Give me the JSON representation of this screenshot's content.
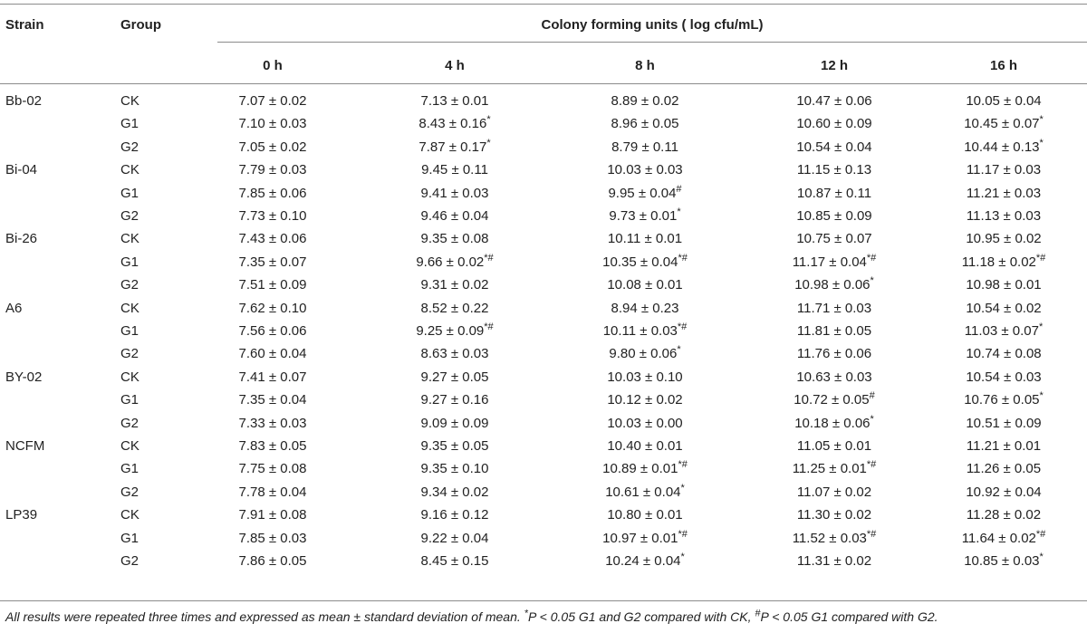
{
  "headers": {
    "strain": "Strain",
    "group": "Group",
    "span": "Colony forming units ( log cfu/mL)",
    "times": [
      "0 h",
      "4 h",
      "8 h",
      "12 h",
      "16 h"
    ]
  },
  "rows": [
    {
      "strain": "Bb-02",
      "group": "CK",
      "cells": [
        {
          "v": "7.07 ± 0.02",
          "m": ""
        },
        {
          "v": "7.13 ± 0.01",
          "m": ""
        },
        {
          "v": "8.89 ± 0.02",
          "m": ""
        },
        {
          "v": "10.47 ± 0.06",
          "m": ""
        },
        {
          "v": "10.05 ± 0.04",
          "m": ""
        }
      ]
    },
    {
      "strain": "",
      "group": "G1",
      "cells": [
        {
          "v": "7.10 ± 0.03",
          "m": ""
        },
        {
          "v": "8.43 ± 0.16",
          "m": "*"
        },
        {
          "v": "8.96 ± 0.05",
          "m": ""
        },
        {
          "v": "10.60 ± 0.09",
          "m": ""
        },
        {
          "v": "10.45 ± 0.07",
          "m": "*"
        }
      ]
    },
    {
      "strain": "",
      "group": "G2",
      "cells": [
        {
          "v": "7.05 ± 0.02",
          "m": ""
        },
        {
          "v": "7.87 ± 0.17",
          "m": "*"
        },
        {
          "v": "8.79 ± 0.11",
          "m": ""
        },
        {
          "v": "10.54 ± 0.04",
          "m": ""
        },
        {
          "v": "10.44 ± 0.13",
          "m": "*"
        }
      ]
    },
    {
      "strain": "Bi-04",
      "group": "CK",
      "cells": [
        {
          "v": "7.79 ± 0.03",
          "m": ""
        },
        {
          "v": "9.45 ± 0.11",
          "m": ""
        },
        {
          "v": "10.03 ± 0.03",
          "m": ""
        },
        {
          "v": "11.15 ± 0.13",
          "m": ""
        },
        {
          "v": "11.17 ± 0.03",
          "m": ""
        }
      ]
    },
    {
      "strain": "",
      "group": "G1",
      "cells": [
        {
          "v": "7.85 ± 0.06",
          "m": ""
        },
        {
          "v": "9.41 ± 0.03",
          "m": ""
        },
        {
          "v": "9.95 ± 0.04",
          "m": "#"
        },
        {
          "v": "10.87 ± 0.11",
          "m": ""
        },
        {
          "v": "11.21 ± 0.03",
          "m": ""
        }
      ]
    },
    {
      "strain": "",
      "group": "G2",
      "cells": [
        {
          "v": "7.73 ± 0.10",
          "m": ""
        },
        {
          "v": "9.46 ± 0.04",
          "m": ""
        },
        {
          "v": "9.73 ± 0.01",
          "m": "*"
        },
        {
          "v": "10.85 ± 0.09",
          "m": ""
        },
        {
          "v": "11.13 ± 0.03",
          "m": ""
        }
      ]
    },
    {
      "strain": "Bi-26",
      "group": "CK",
      "cells": [
        {
          "v": "7.43 ± 0.06",
          "m": ""
        },
        {
          "v": "9.35 ± 0.08",
          "m": ""
        },
        {
          "v": "10.11 ± 0.01",
          "m": ""
        },
        {
          "v": "10.75 ± 0.07",
          "m": ""
        },
        {
          "v": "10.95 ± 0.02",
          "m": ""
        }
      ]
    },
    {
      "strain": "",
      "group": "G1",
      "cells": [
        {
          "v": "7.35 ± 0.07",
          "m": ""
        },
        {
          "v": "9.66 ± 0.02",
          "m": "*#"
        },
        {
          "v": "10.35 ± 0.04",
          "m": "*#"
        },
        {
          "v": "11.17 ± 0.04",
          "m": "*#"
        },
        {
          "v": "11.18 ± 0.02",
          "m": "*#"
        }
      ]
    },
    {
      "strain": "",
      "group": "G2",
      "cells": [
        {
          "v": "7.51 ± 0.09",
          "m": ""
        },
        {
          "v": "9.31 ± 0.02",
          "m": ""
        },
        {
          "v": "10.08 ± 0.01",
          "m": ""
        },
        {
          "v": "10.98 ± 0.06",
          "m": "*"
        },
        {
          "v": "10.98 ± 0.01",
          "m": ""
        }
      ]
    },
    {
      "strain": "A6",
      "group": "CK",
      "cells": [
        {
          "v": "7.62 ± 0.10",
          "m": ""
        },
        {
          "v": "8.52 ± 0.22",
          "m": ""
        },
        {
          "v": "8.94 ± 0.23",
          "m": ""
        },
        {
          "v": "11.71 ± 0.03",
          "m": ""
        },
        {
          "v": "10.54 ± 0.02",
          "m": ""
        }
      ]
    },
    {
      "strain": "",
      "group": "G1",
      "cells": [
        {
          "v": "7.56 ± 0.06",
          "m": ""
        },
        {
          "v": "9.25 ± 0.09",
          "m": "*#"
        },
        {
          "v": "10.11 ± 0.03",
          "m": "*#"
        },
        {
          "v": "11.81 ± 0.05",
          "m": ""
        },
        {
          "v": "11.03 ± 0.07",
          "m": "*"
        }
      ]
    },
    {
      "strain": "",
      "group": "G2",
      "cells": [
        {
          "v": "7.60 ± 0.04",
          "m": ""
        },
        {
          "v": "8.63 ± 0.03",
          "m": ""
        },
        {
          "v": "9.80 ± 0.06",
          "m": "*"
        },
        {
          "v": "11.76 ± 0.06",
          "m": ""
        },
        {
          "v": "10.74 ± 0.08",
          "m": ""
        }
      ]
    },
    {
      "strain": "BY-02",
      "group": "CK",
      "cells": [
        {
          "v": "7.41 ± 0.07",
          "m": ""
        },
        {
          "v": "9.27 ± 0.05",
          "m": ""
        },
        {
          "v": "10.03 ± 0.10",
          "m": ""
        },
        {
          "v": "10.63 ± 0.03",
          "m": ""
        },
        {
          "v": "10.54 ± 0.03",
          "m": ""
        }
      ]
    },
    {
      "strain": "",
      "group": "G1",
      "cells": [
        {
          "v": "7.35 ± 0.04",
          "m": ""
        },
        {
          "v": "9.27 ± 0.16",
          "m": ""
        },
        {
          "v": "10.12 ± 0.02",
          "m": ""
        },
        {
          "v": "10.72 ± 0.05",
          "m": "#"
        },
        {
          "v": "10.76 ± 0.05",
          "m": "*"
        }
      ]
    },
    {
      "strain": "",
      "group": "G2",
      "cells": [
        {
          "v": "7.33 ± 0.03",
          "m": ""
        },
        {
          "v": "9.09 ± 0.09",
          "m": ""
        },
        {
          "v": "10.03 ± 0.00",
          "m": ""
        },
        {
          "v": "10.18 ± 0.06",
          "m": "*"
        },
        {
          "v": "10.51 ± 0.09",
          "m": ""
        }
      ]
    },
    {
      "strain": "NCFM",
      "group": "CK",
      "cells": [
        {
          "v": "7.83 ± 0.05",
          "m": ""
        },
        {
          "v": "9.35 ± 0.05",
          "m": ""
        },
        {
          "v": "10.40 ± 0.01",
          "m": ""
        },
        {
          "v": "11.05 ± 0.01",
          "m": ""
        },
        {
          "v": "11.21 ± 0.01",
          "m": ""
        }
      ]
    },
    {
      "strain": "",
      "group": "G1",
      "cells": [
        {
          "v": "7.75 ± 0.08",
          "m": ""
        },
        {
          "v": "9.35 ± 0.10",
          "m": ""
        },
        {
          "v": "10.89 ± 0.01",
          "m": "*#"
        },
        {
          "v": "11.25 ± 0.01",
          "m": "*#"
        },
        {
          "v": "11.26 ± 0.05",
          "m": ""
        }
      ]
    },
    {
      "strain": "",
      "group": "G2",
      "cells": [
        {
          "v": "7.78 ± 0.04",
          "m": ""
        },
        {
          "v": "9.34 ± 0.02",
          "m": ""
        },
        {
          "v": "10.61 ± 0.04",
          "m": "*"
        },
        {
          "v": "11.07 ± 0.02",
          "m": ""
        },
        {
          "v": "10.92 ± 0.04",
          "m": ""
        }
      ]
    },
    {
      "strain": "LP39",
      "group": "CK",
      "cells": [
        {
          "v": "7.91 ± 0.08",
          "m": ""
        },
        {
          "v": "9.16 ± 0.12",
          "m": ""
        },
        {
          "v": "10.80 ± 0.01",
          "m": ""
        },
        {
          "v": "11.30 ± 0.02",
          "m": ""
        },
        {
          "v": "11.28 ± 0.02",
          "m": ""
        }
      ]
    },
    {
      "strain": "",
      "group": "G1",
      "cells": [
        {
          "v": "7.85 ± 0.03",
          "m": ""
        },
        {
          "v": "9.22 ± 0.04",
          "m": ""
        },
        {
          "v": "10.97 ± 0.01",
          "m": "*#"
        },
        {
          "v": "11.52 ± 0.03",
          "m": "*#"
        },
        {
          "v": "11.64 ± 0.02",
          "m": "*#"
        }
      ]
    },
    {
      "strain": "",
      "group": "G2",
      "cells": [
        {
          "v": "7.86 ± 0.05",
          "m": ""
        },
        {
          "v": "8.45 ± 0.15",
          "m": ""
        },
        {
          "v": "10.24 ± 0.04",
          "m": "*"
        },
        {
          "v": "11.31 ± 0.02",
          "m": ""
        },
        {
          "v": "10.85 ± 0.03",
          "m": "*"
        }
      ]
    }
  ],
  "footnote": {
    "part1": "All results were repeated three times and expressed as mean ± standard deviation of mean. ",
    "star": "*",
    "part2": "P < 0.05 G1 and G2 compared with CK, ",
    "hash": "#",
    "part3": "P < 0.05 G1 compared with G2."
  }
}
